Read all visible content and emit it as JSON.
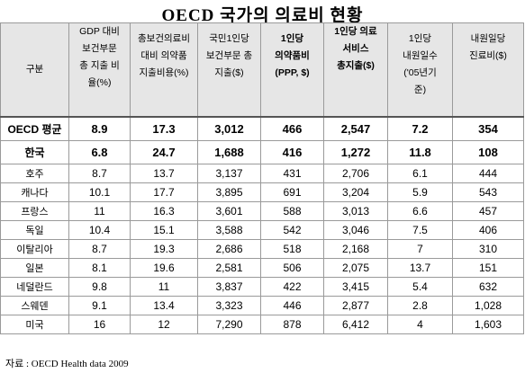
{
  "title": "OECD 국가의 의료비 현황",
  "headers": [
    {
      "lines": [
        "구분"
      ]
    },
    {
      "lines": [
        "GDP 대비",
        "보건부문",
        "총 지출 비",
        "율(%)"
      ]
    },
    {
      "lines": [
        "총보건의료비",
        "대비 의약품",
        "지출비용(%)"
      ]
    },
    {
      "lines": [
        "국민1인당",
        "보건부문 총",
        "지출($)"
      ]
    },
    {
      "lines": [
        "1인당",
        "의약품비",
        "(PPP, $)"
      ]
    },
    {
      "lines": [
        "1인당 의료",
        "서비스",
        "총지출($)"
      ]
    },
    {
      "lines": [
        "1인당",
        "내원일수",
        "('05년기",
        "준)"
      ]
    },
    {
      "lines": [
        "내원일당",
        "진료비($)"
      ]
    }
  ],
  "rows": [
    {
      "name": "OECD 평균",
      "cells": [
        "8.9",
        "17.3",
        "3,012",
        "466",
        "2,547",
        "7.2",
        "354"
      ],
      "emph": true
    },
    {
      "name": "한국",
      "cells": [
        "6.8",
        "24.7",
        "1,688",
        "416",
        "1,272",
        "11.8",
        "108"
      ],
      "emph": true
    },
    {
      "name": "호주",
      "cells": [
        "8.7",
        "13.7",
        "3,137",
        "431",
        "2,706",
        "6.1",
        "444"
      ]
    },
    {
      "name": "캐나다",
      "cells": [
        "10.1",
        "17.7",
        "3,895",
        "691",
        "3,204",
        "5.9",
        "543"
      ]
    },
    {
      "name": "프랑스",
      "cells": [
        "11",
        "16.3",
        "3,601",
        "588",
        "3,013",
        "6.6",
        "457"
      ]
    },
    {
      "name": "독일",
      "cells": [
        "10.4",
        "15.1",
        "3,588",
        "542",
        "3,046",
        "7.5",
        "406"
      ]
    },
    {
      "name": "이탈리아",
      "cells": [
        "8.7",
        "19.3",
        "2,686",
        "518",
        "2,168",
        "7",
        "310"
      ]
    },
    {
      "name": "일본",
      "cells": [
        "8.1",
        "19.6",
        "2,581",
        "506",
        "2,075",
        "13.7",
        "151"
      ]
    },
    {
      "name": "네덜란드",
      "cells": [
        "9.8",
        "11",
        "3,837",
        "422",
        "3,415",
        "5.4",
        "632"
      ]
    },
    {
      "name": "스웨덴",
      "cells": [
        "9.1",
        "13.4",
        "3,323",
        "446",
        "2,877",
        "2.8",
        "1,028"
      ]
    },
    {
      "name": "미국",
      "cells": [
        "16",
        "12",
        "7,290",
        "878",
        "6,412",
        "4",
        "1,603"
      ]
    }
  ],
  "source": "자료 : OECD Health data 2009"
}
